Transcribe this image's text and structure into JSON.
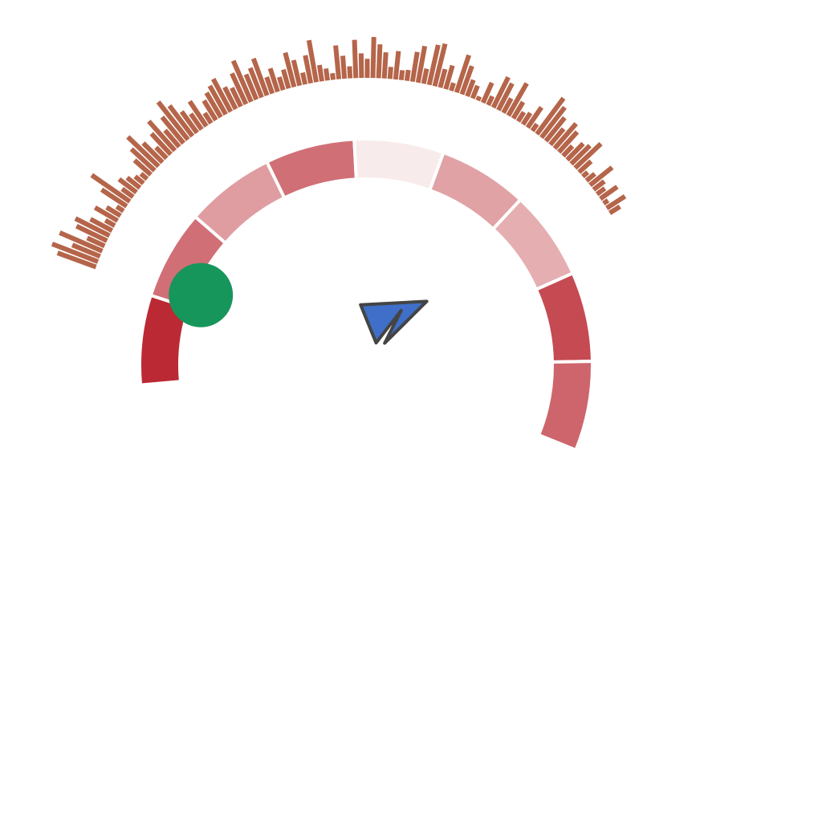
{
  "chart_data": {
    "type": "radial",
    "title": "",
    "background": "#ffffff",
    "heat_ring": {
      "angle_range_deg": [
        -95,
        112
      ],
      "values": [
        0.95,
        0.62,
        0.4,
        0.62,
        0.03,
        0.38,
        0.32,
        0.8,
        0.67
      ],
      "color_scale": [
        "#faf1f1",
        "#b8202a"
      ]
    },
    "spike_ring": {
      "color": "#b5654a",
      "angle_range_deg": [
        -70,
        58
      ],
      "values": [
        0.75,
        0.9,
        0.55,
        0.85,
        0.35,
        0.62,
        0.7,
        0.45,
        0.2,
        0.48,
        0.3,
        0.15,
        0.55,
        0.85,
        0.25,
        0.4,
        0.3,
        0.2,
        0.15,
        0.4,
        0.58,
        0.78,
        0.5,
        0.28,
        0.52,
        0.72,
        0.4,
        0.62,
        0.88,
        0.7,
        0.48,
        0.35,
        0.55,
        0.22,
        0.42,
        0.52,
        0.6,
        0.68,
        0.45,
        0.38,
        0.62,
        0.82,
        0.5,
        0.58,
        0.72,
        0.32,
        0.45,
        0.25,
        0.36,
        0.65,
        0.48,
        0.22,
        0.52,
        0.78,
        0.3,
        0.22,
        0.12,
        0.62,
        0.42,
        0.22,
        0.7,
        0.45,
        0.35,
        0.75,
        0.62,
        0.48,
        0.22,
        0.52,
        0.18,
        0.2,
        0.55,
        0.68,
        0.28,
        0.75,
        0.8,
        0.35,
        0.45,
        0.15,
        0.72,
        0.55,
        0.32,
        0.25,
        0.08,
        0.4,
        0.18,
        0.62,
        0.55,
        0.3,
        0.68,
        0.35,
        0.2,
        0.25,
        0.45,
        0.15,
        0.82,
        0.7,
        0.55,
        0.38,
        0.6,
        0.5,
        0.25,
        0.42,
        0.48,
        0.65,
        0.3,
        0.12,
        0.2,
        0.52,
        0.25,
        0.18,
        0.38,
        0.1,
        0.4,
        0.22
      ]
    },
    "polygon": {
      "fill": "#3f6fc8",
      "stroke": "#444444",
      "points": [
        [
          -0.09,
          0.42
        ],
        [
          0.42,
          0.17
        ],
        [
          0.57,
          0.45
        ],
        [
          0.7,
          0.2
        ],
        [
          0.76,
          0.61
        ]
      ]
    },
    "marker": {
      "fill": "#17965b",
      "angle_deg": -67,
      "radius_value": 0.86
    }
  }
}
